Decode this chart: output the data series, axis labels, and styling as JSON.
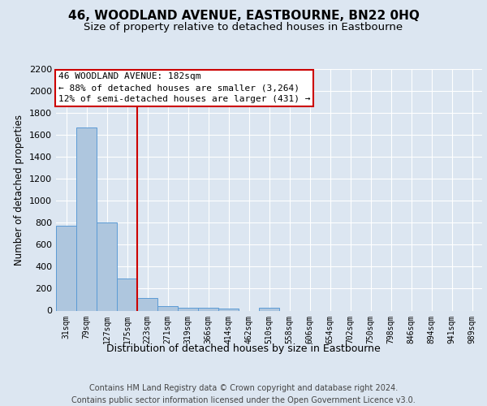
{
  "title": "46, WOODLAND AVENUE, EASTBOURNE, BN22 0HQ",
  "subtitle": "Size of property relative to detached houses in Eastbourne",
  "xlabel": "Distribution of detached houses by size in Eastbourne",
  "ylabel": "Number of detached properties",
  "categories": [
    "31sqm",
    "79sqm",
    "127sqm",
    "175sqm",
    "223sqm",
    "271sqm",
    "319sqm",
    "366sqm",
    "414sqm",
    "462sqm",
    "510sqm",
    "558sqm",
    "606sqm",
    "654sqm",
    "702sqm",
    "750sqm",
    "798sqm",
    "846sqm",
    "894sqm",
    "941sqm",
    "989sqm"
  ],
  "values": [
    770,
    1670,
    800,
    295,
    115,
    40,
    28,
    25,
    22,
    0,
    25,
    0,
    0,
    0,
    0,
    0,
    0,
    0,
    0,
    0,
    0
  ],
  "bar_color": "#aec6de",
  "bar_edge_color": "#5b9bd5",
  "vline_x": 3.5,
  "vline_color": "#cc0000",
  "annotation_line1": "46 WOODLAND AVENUE: 182sqm",
  "annotation_line2": "← 88% of detached houses are smaller (3,264)",
  "annotation_line3": "12% of semi-detached houses are larger (431) →",
  "annotation_box_color": "#ffffff",
  "annotation_box_edge": "#cc0000",
  "ylim": [
    0,
    2200
  ],
  "yticks": [
    0,
    200,
    400,
    600,
    800,
    1000,
    1200,
    1400,
    1600,
    1800,
    2000,
    2200
  ],
  "background_color": "#dce6f1",
  "footer": "Contains HM Land Registry data © Crown copyright and database right 2024.\nContains public sector information licensed under the Open Government Licence v3.0.",
  "title_fontsize": 11,
  "subtitle_fontsize": 9.5,
  "xlabel_fontsize": 9,
  "ylabel_fontsize": 8.5,
  "tick_fontsize": 8,
  "xtick_fontsize": 7,
  "footer_fontsize": 7,
  "annotation_fontsize": 8
}
